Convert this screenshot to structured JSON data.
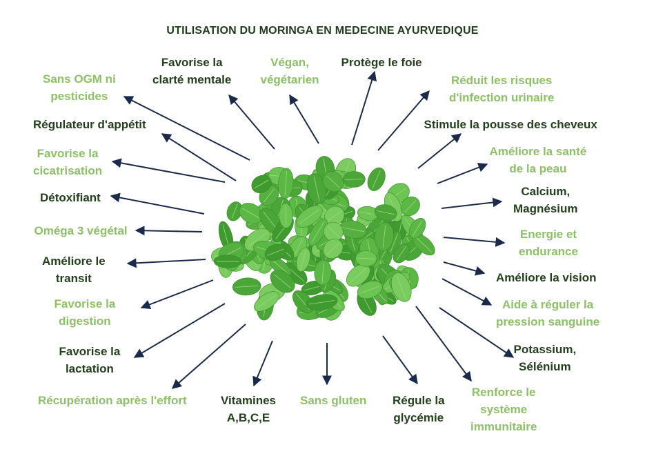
{
  "title": "UTILISATION DU MORINGA EN MEDECINE AYURVEDIQUE",
  "colors": {
    "dark_text": "#23401c",
    "light_text": "#8cc265",
    "arrow": "#1b2a4a",
    "leaf": "#5cb844"
  },
  "center_image": "moringa-leaves",
  "labels": [
    {
      "id": "favorise-clarte",
      "lines": [
        "Favorise la",
        "clarté mentale"
      ],
      "tone": "dark"
    },
    {
      "id": "vegan",
      "lines": [
        "Végan,",
        "végétarien"
      ],
      "tone": "light"
    },
    {
      "id": "protege-foie",
      "lines": [
        "Protège le foie"
      ],
      "tone": "dark"
    },
    {
      "id": "sans-ogm",
      "lines": [
        "Sans OGM ni",
        "pesticides"
      ],
      "tone": "light"
    },
    {
      "id": "reduit-risques",
      "lines": [
        "Réduit les risques",
        "d'infection urinaire"
      ],
      "tone": "light"
    },
    {
      "id": "regulateur-appetit",
      "lines": [
        "Régulateur d'appétit"
      ],
      "tone": "dark"
    },
    {
      "id": "stimule-cheveux",
      "lines": [
        "Stimule la pousse des cheveux"
      ],
      "tone": "dark"
    },
    {
      "id": "cicatrisation",
      "lines": [
        "Favorise la",
        "cicatrisation"
      ],
      "tone": "light"
    },
    {
      "id": "sante-peau",
      "lines": [
        "Améliore la santé",
        "de la peau"
      ],
      "tone": "light"
    },
    {
      "id": "detoxifiant",
      "lines": [
        "Détoxifiant"
      ],
      "tone": "dark"
    },
    {
      "id": "calcium",
      "lines": [
        "Calcium,",
        "Magnésium"
      ],
      "tone": "dark"
    },
    {
      "id": "omega3",
      "lines": [
        "Oméga 3 végétal"
      ],
      "tone": "light"
    },
    {
      "id": "energie",
      "lines": [
        "Energie et",
        "endurance"
      ],
      "tone": "light"
    },
    {
      "id": "transit",
      "lines": [
        "Améliore le",
        "transit"
      ],
      "tone": "dark"
    },
    {
      "id": "vision",
      "lines": [
        "Améliore la vision"
      ],
      "tone": "dark"
    },
    {
      "id": "digestion",
      "lines": [
        "Favorise la",
        "digestion"
      ],
      "tone": "light"
    },
    {
      "id": "pression",
      "lines": [
        "Aide à réguler la",
        "pression sanguine"
      ],
      "tone": "light"
    },
    {
      "id": "lactation",
      "lines": [
        "Favorise la",
        "lactation"
      ],
      "tone": "dark"
    },
    {
      "id": "potassium",
      "lines": [
        "Potassium,",
        "Sélénium"
      ],
      "tone": "dark"
    },
    {
      "id": "recuperation",
      "lines": [
        "Récupération après l'effort"
      ],
      "tone": "light"
    },
    {
      "id": "vitamines",
      "lines": [
        "Vitamines",
        "A,B,C,E"
      ],
      "tone": "dark"
    },
    {
      "id": "sans-gluten",
      "lines": [
        "Sans gluten"
      ],
      "tone": "light"
    },
    {
      "id": "glycemie",
      "lines": [
        "Régule la",
        "glycémie"
      ],
      "tone": "dark"
    },
    {
      "id": "immunitaire",
      "lines": [
        "Renforce le",
        "système",
        "immunitaire"
      ],
      "tone": "light"
    }
  ]
}
